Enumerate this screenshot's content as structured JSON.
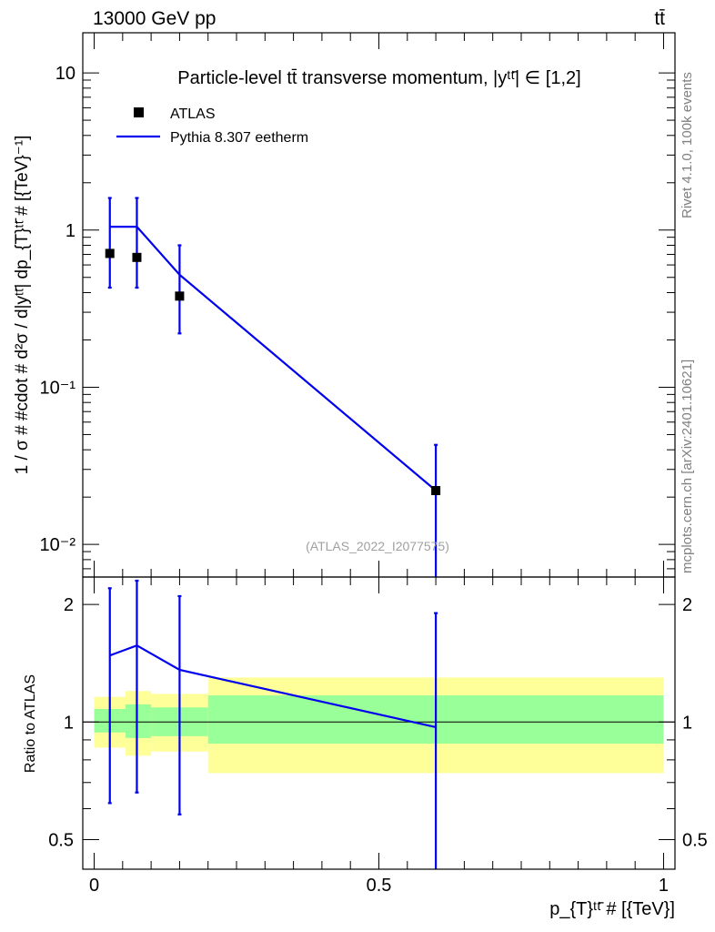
{
  "header": {
    "energy_label": "13000 GeV pp",
    "process_label": "tt̄"
  },
  "side_labels": {
    "rivet": "Rivet 4.1.0,  100k events",
    "source": "mcplots.cern.ch [arXiv:2401.10621]"
  },
  "watermark": "(ATLAS_2022_I2077575)",
  "chart_data": [
    {
      "type": "scatter",
      "panel": "main",
      "title": "Particle-level tt̄ transverse momentum, |yᵗᵗ̄| ∈ [1,2]",
      "ylabel": "1 / σ # #cdot # d²σ / d|yᵗᵗ̄| dp_{T}ᵗᵗ̄ # [{TeV}⁻¹]",
      "yscale": "log",
      "ylim": [
        0.0062,
        18
      ],
      "xlim": [
        -0.02,
        1.02
      ],
      "ytick_labels": [
        "10",
        "1",
        "10⁻¹",
        "10⁻²"
      ],
      "legend": [
        {
          "label": "ATLAS",
          "marker": "square",
          "color": "#000000"
        },
        {
          "label": "Pythia 8.307 eetherm",
          "marker": "line",
          "color": "#0000ee"
        }
      ],
      "series": [
        {
          "name": "ATLAS",
          "x": [
            0.0275,
            0.075,
            0.15,
            0.6
          ],
          "y": [
            0.71,
            0.67,
            0.38,
            0.022
          ]
        },
        {
          "name": "Pythia 8.307 eetherm",
          "bin_edges": [
            0.0275,
            0.075,
            0.15,
            0.6
          ],
          "x": [
            0.0275,
            0.075,
            0.15,
            0.6
          ],
          "y": [
            1.05,
            1.05,
            0.52,
            0.022
          ],
          "yerr_low": [
            0.43,
            0.43,
            0.22,
            0.0062
          ],
          "yerr_high": [
            1.6,
            1.6,
            0.8,
            0.043
          ]
        }
      ]
    },
    {
      "type": "line",
      "panel": "ratio",
      "ylabel": "Ratio to ATLAS",
      "xlabel": "p_{T}ᵗᵗ̄ # [{TeV}]",
      "yscale": "log",
      "ylim": [
        0.42,
        2.35
      ],
      "xlim": [
        -0.02,
        1.02
      ],
      "xtick_labels": [
        "0",
        "0.5",
        "1"
      ],
      "ytick_labels": [
        "2",
        "1",
        "0.5"
      ],
      "reference_line": 1,
      "bands": {
        "bin_edges": [
          0,
          0.055,
          0.1,
          0.2,
          1.0
        ],
        "stat_color": "#99ff99",
        "total_color": "#ffff99",
        "stat_low": [
          0.94,
          0.91,
          0.92,
          0.88
        ],
        "stat_high": [
          1.08,
          1.11,
          1.09,
          1.17
        ],
        "total_low": [
          0.86,
          0.82,
          0.84,
          0.74
        ],
        "total_high": [
          1.16,
          1.2,
          1.18,
          1.3
        ]
      },
      "series": [
        {
          "name": "Pythia 8.307 eetherm",
          "x": [
            0.0275,
            0.075,
            0.15,
            0.6
          ],
          "y": [
            1.48,
            1.57,
            1.36,
            0.97
          ],
          "yerr_low": [
            0.62,
            0.66,
            0.58,
            0.42
          ],
          "yerr_high": [
            2.2,
            2.3,
            2.1,
            1.9
          ]
        }
      ]
    }
  ]
}
